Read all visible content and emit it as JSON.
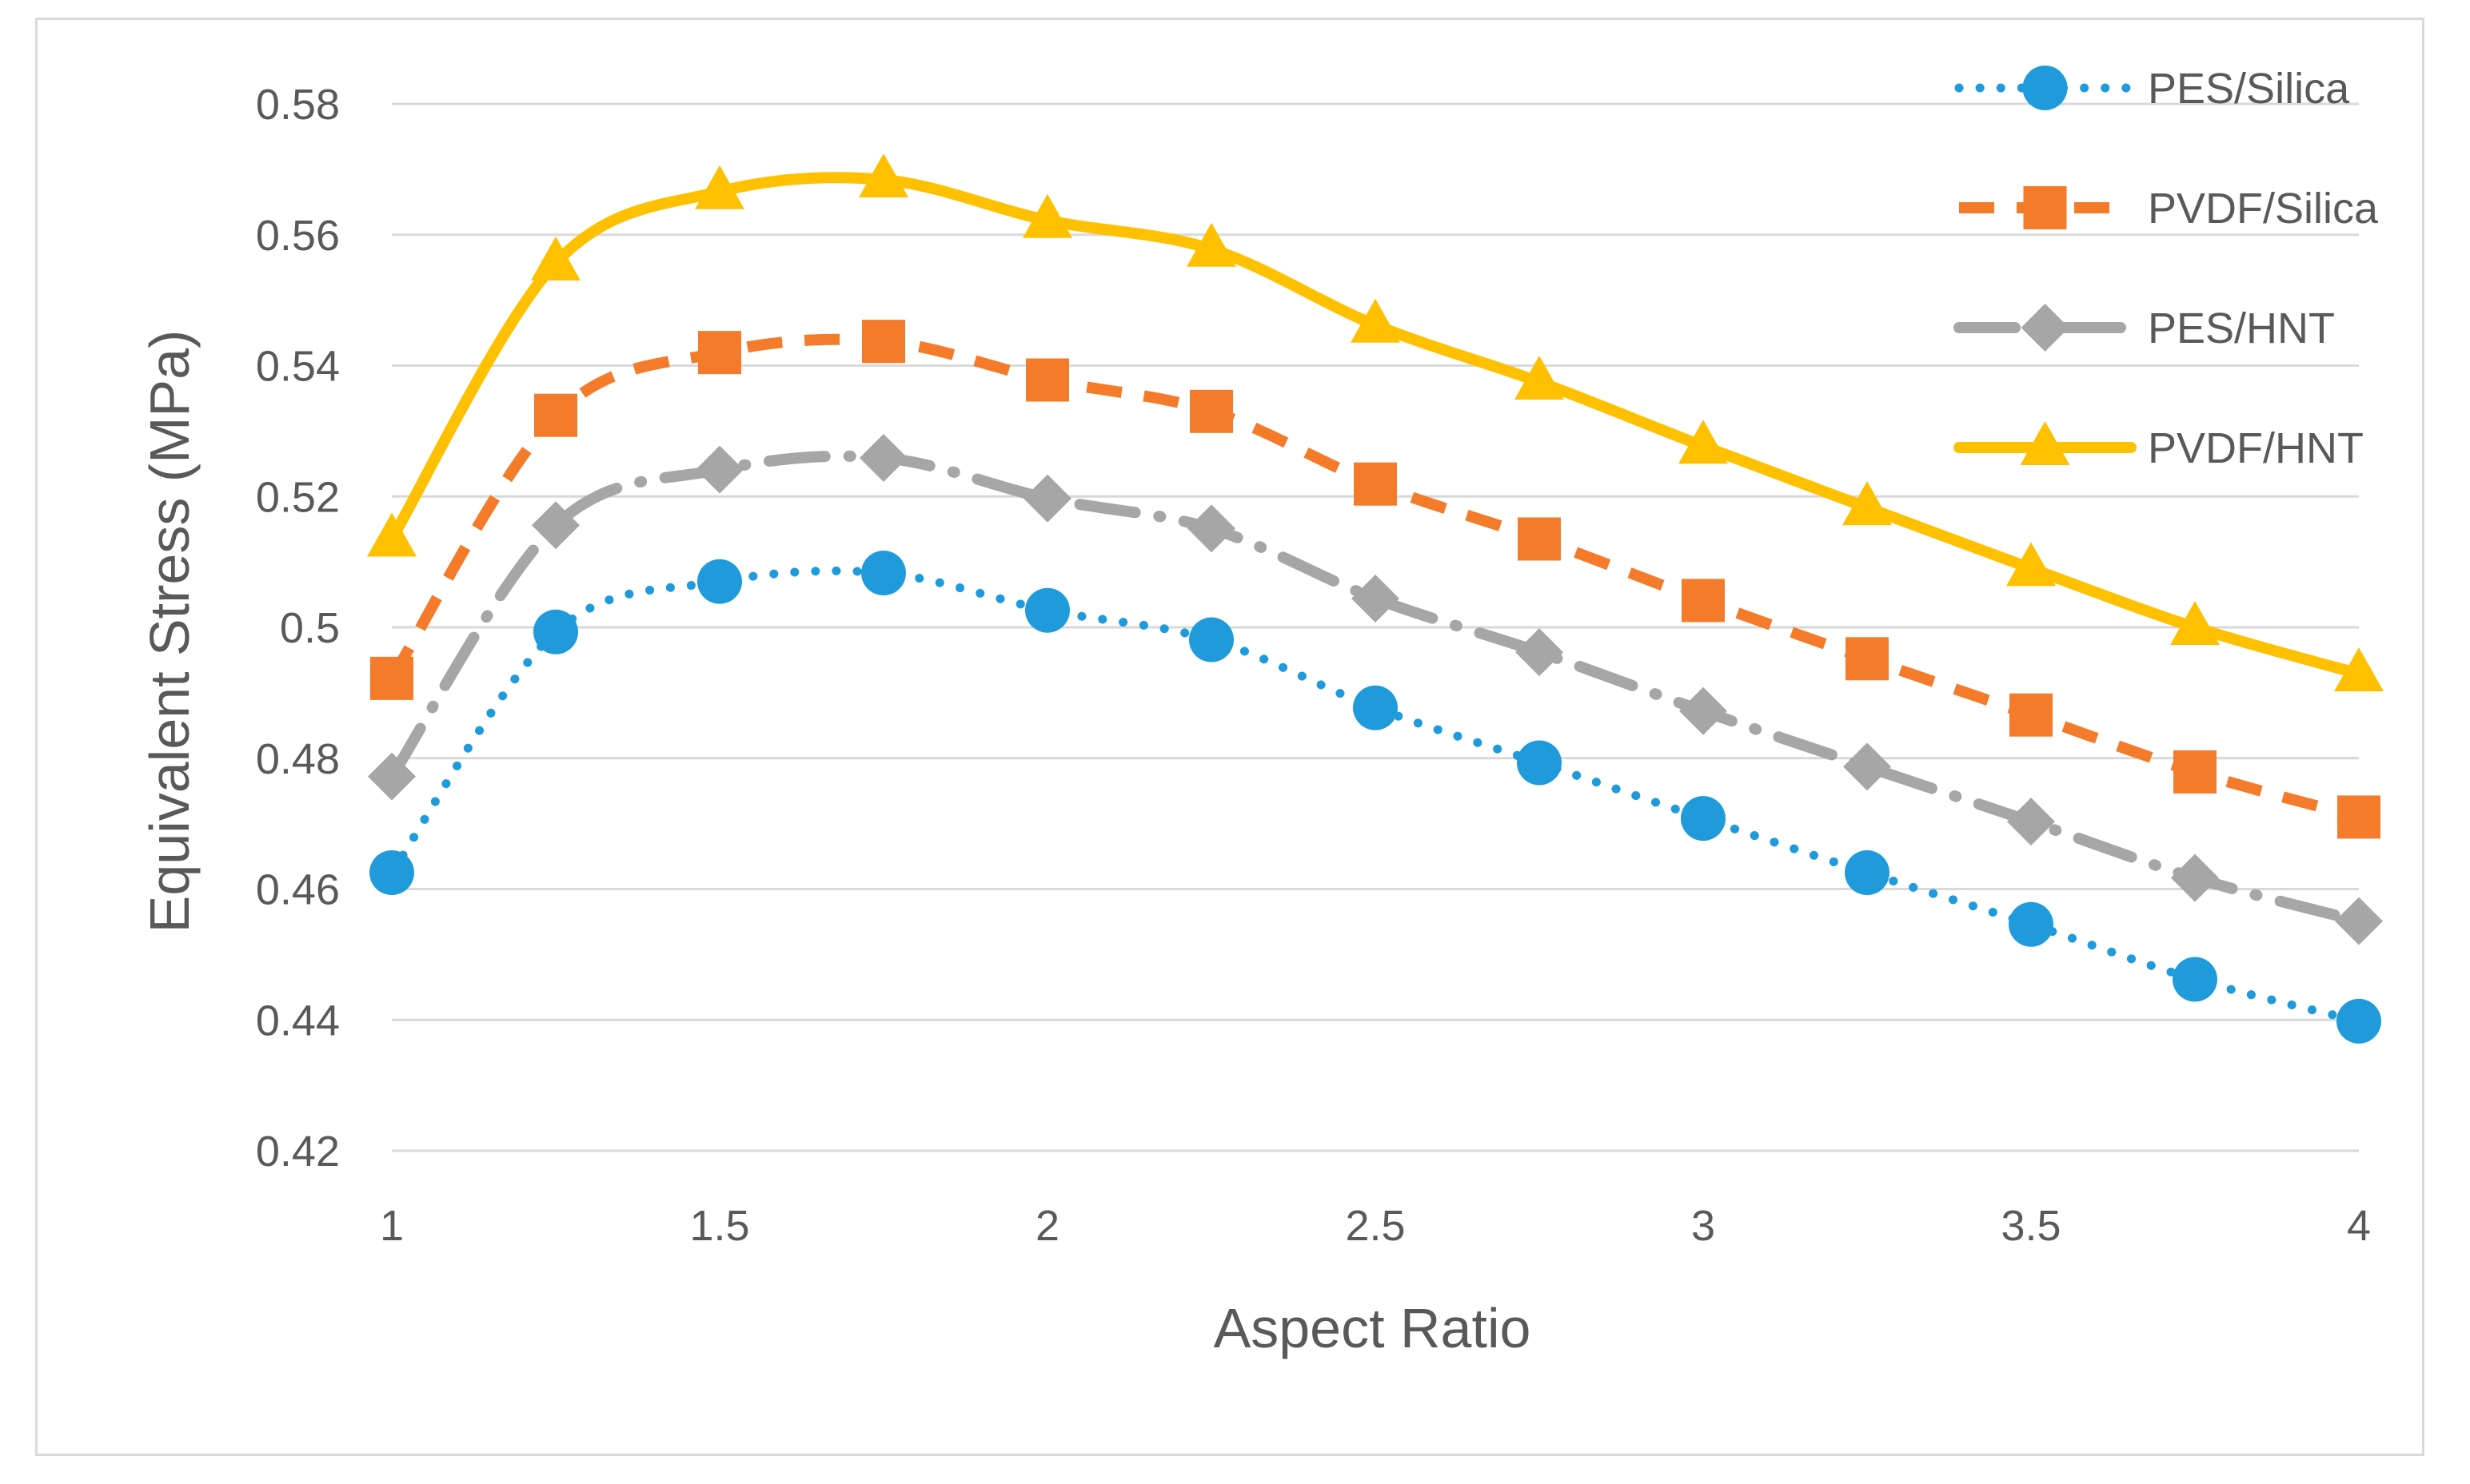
{
  "chart_data": {
    "type": "line",
    "title": "",
    "xlabel": "Aspect Ratio",
    "ylabel": "Equivalent Stress (MPa)",
    "xlim": [
      1,
      4
    ],
    "ylim": [
      0.42,
      0.58
    ],
    "x_ticks": [
      "1",
      "1.5",
      "2",
      "2.5",
      "3",
      "3.5",
      "4"
    ],
    "y_ticks": [
      "0.42",
      "0.44",
      "0.46",
      "0.48",
      "0.5",
      "0.52",
      "0.54",
      "0.56",
      "0.58"
    ],
    "grid": true,
    "legend_position": "top-right",
    "x": [
      1,
      1.25,
      1.5,
      1.75,
      2,
      2.25,
      2.5,
      2.75,
      3,
      3.25,
      3.5,
      3.75,
      4
    ],
    "series": [
      {
        "name": "PES/Silica",
        "color": "#1f9bdc",
        "marker": "circle",
        "line_style": "dotted",
        "values": [
          0.4625,
          0.4993,
          0.507,
          0.5083,
          0.5026,
          0.4981,
          0.4877,
          0.4793,
          0.4708,
          0.4625,
          0.4546,
          0.4462,
          0.4398
        ]
      },
      {
        "name": "PVDF/Silica",
        "color": "#f47b2a",
        "marker": "square",
        "line_style": "dashed",
        "values": [
          0.4922,
          0.5324,
          0.542,
          0.5437,
          0.5378,
          0.533,
          0.5219,
          0.5135,
          0.5041,
          0.4952,
          0.4866,
          0.4779,
          0.471
        ]
      },
      {
        "name": "PES/HNT",
        "color": "#a6a6a6",
        "marker": "diamond",
        "line_style": "dashdot",
        "values": [
          0.4772,
          0.5156,
          0.5241,
          0.5259,
          0.5197,
          0.5151,
          0.5044,
          0.4962,
          0.4872,
          0.4787,
          0.4703,
          0.4617,
          0.4551
        ]
      },
      {
        "name": "PVDF/HNT",
        "color": "#ffc000",
        "marker": "triangle",
        "line_style": "solid",
        "values": [
          0.5135,
          0.5557,
          0.5666,
          0.5684,
          0.5622,
          0.5578,
          0.5462,
          0.5375,
          0.5277,
          0.5183,
          0.509,
          0.5,
          0.4929
        ]
      }
    ]
  }
}
